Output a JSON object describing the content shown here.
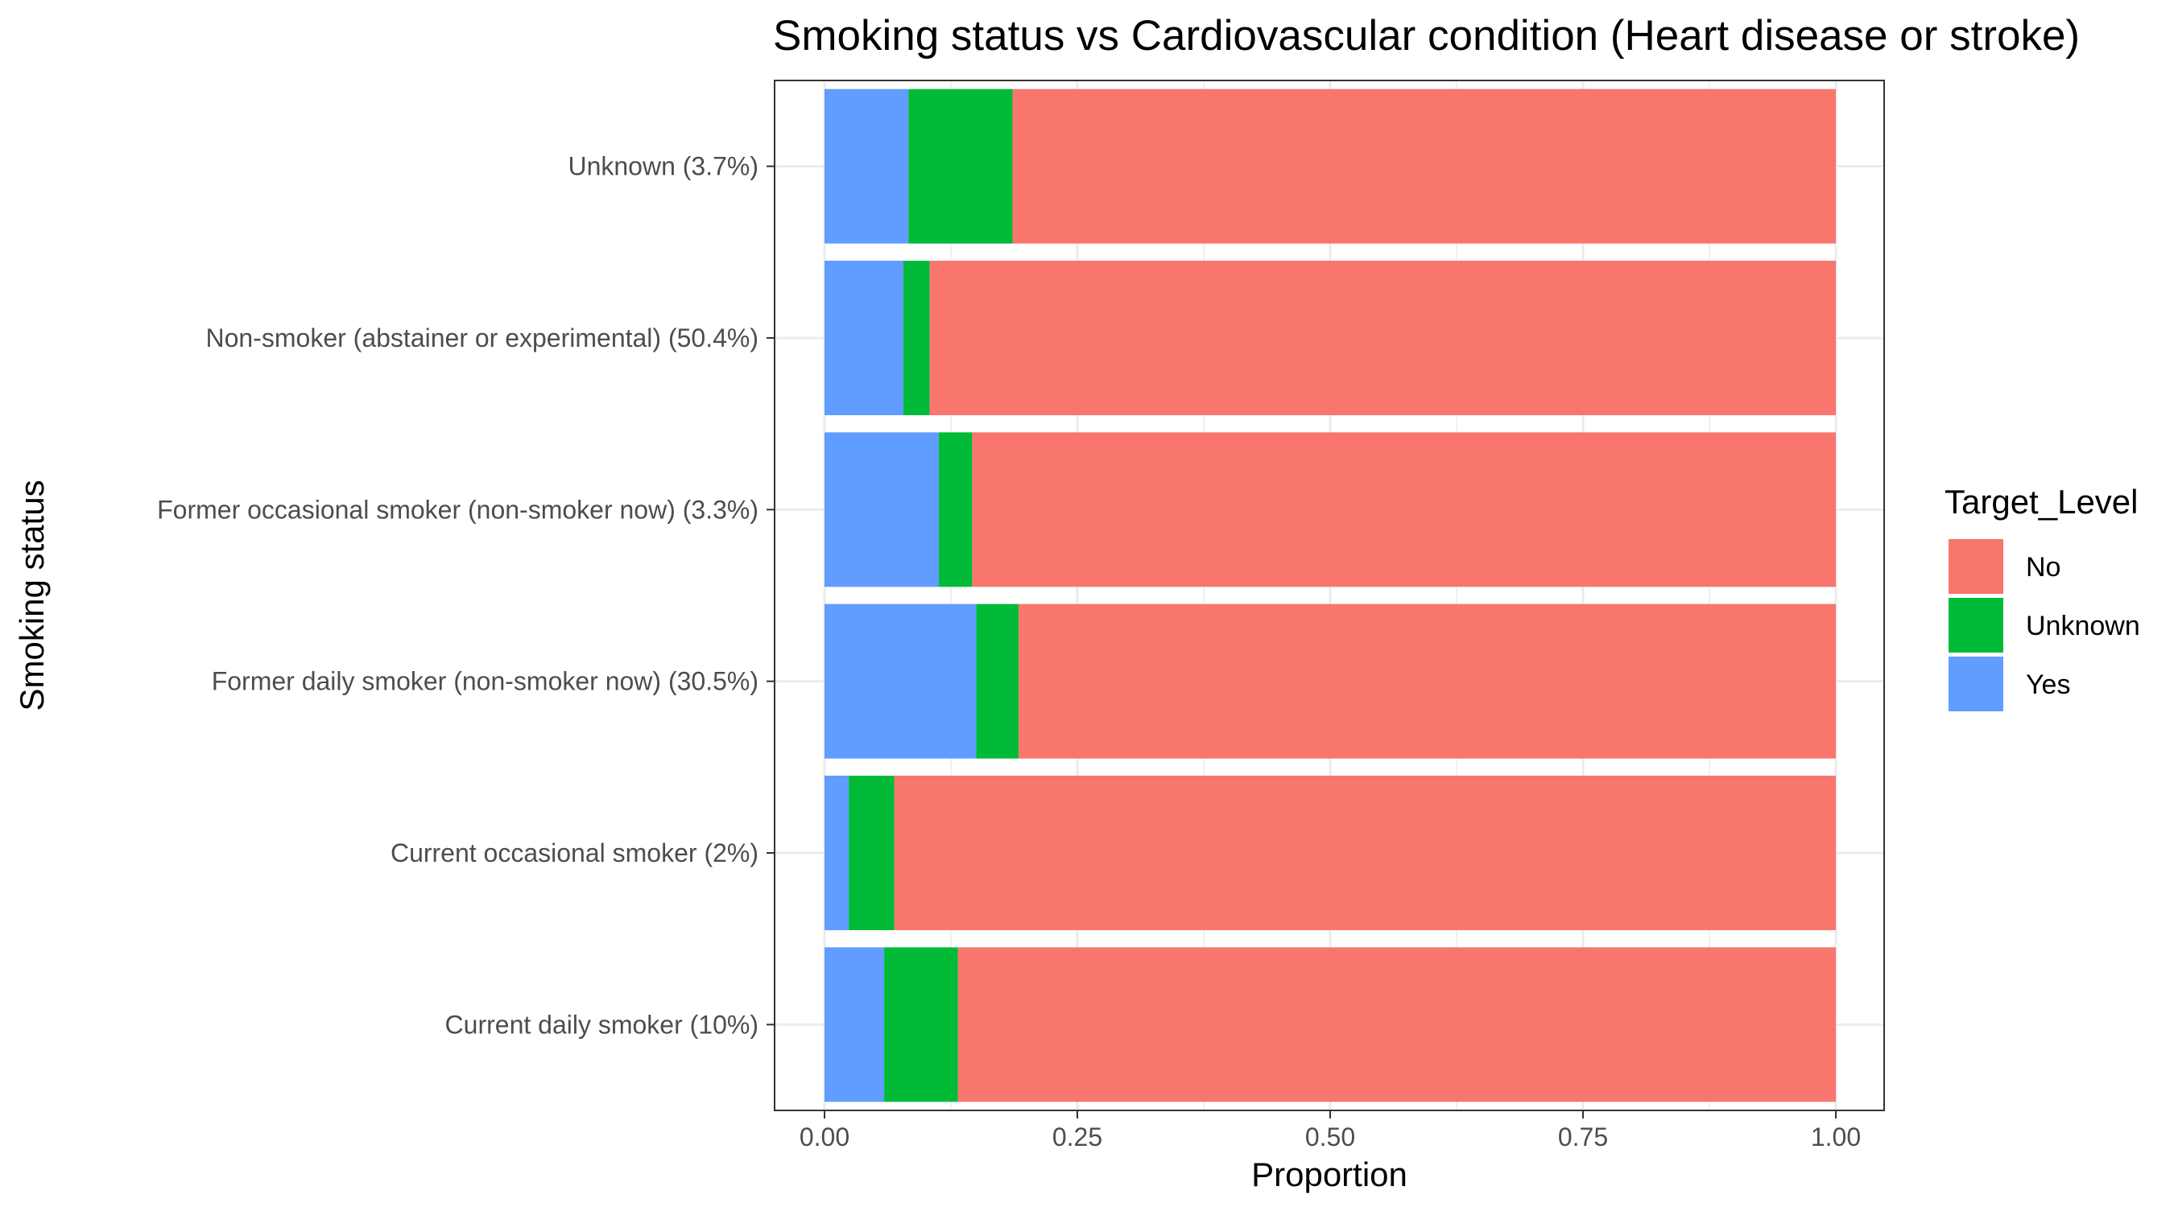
{
  "chart_data": {
    "type": "bar",
    "orientation": "horizontal",
    "stacked": true,
    "title": "Smoking status vs Cardiovascular condition (Heart disease or stroke)",
    "xlabel": "Proportion",
    "ylabel": "Smoking status",
    "xlim": [
      0,
      1
    ],
    "x_ticks": [
      "0.00",
      "0.25",
      "0.50",
      "0.75",
      "1.00"
    ],
    "x_tick_values": [
      0,
      0.25,
      0.5,
      0.75,
      1.0
    ],
    "categories": [
      "Current daily smoker (10%)",
      "Current occasional smoker (2%)",
      "Former daily smoker (non-smoker now) (30.5%)",
      "Former occasional smoker (non-smoker now) (3.3%)",
      "Non-smoker (abstainer or experimental) (50.4%)",
      "Unknown (3.7%)"
    ],
    "series": [
      {
        "name": "Yes",
        "color": "#619CFF",
        "values": [
          0.059,
          0.024,
          0.15,
          0.113,
          0.078,
          0.083
        ]
      },
      {
        "name": "Unknown",
        "color": "#00BA38",
        "values": [
          0.073,
          0.045,
          0.042,
          0.033,
          0.026,
          0.103
        ]
      },
      {
        "name": "No",
        "color": "#F8766D",
        "values": [
          0.868,
          0.931,
          0.808,
          0.854,
          0.896,
          0.814
        ]
      }
    ],
    "legend": {
      "title": "Target_Level",
      "position": "right",
      "entries": [
        {
          "label": "No",
          "color": "#F8766D"
        },
        {
          "label": "Unknown",
          "color": "#00BA38"
        },
        {
          "label": "Yes",
          "color": "#619CFF"
        }
      ]
    },
    "grid": true
  }
}
